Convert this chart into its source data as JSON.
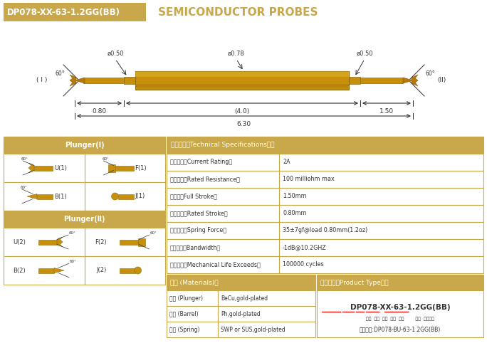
{
  "title_box_text": "DP078-XX-63-1.2GG(BB)",
  "title_subtitle": "SEMICONDUCTOR PROBES",
  "bg_color": "#ffffff",
  "gold_color": "#C8A84B",
  "gold_dark": "#B8962E",
  "gold_light": "#D4B05A",
  "border_color": "#C8A84B",
  "text_color": "#555555",
  "dim_color": "#333333",
  "dims": {
    "d1": "ø0.50",
    "d2": "ø0.78",
    "d3": "ø0.50",
    "l1": "0.80",
    "l2": "(4.0)",
    "l3": "1.50",
    "total": "6.30"
  },
  "specs": [
    [
      "额定电流（Current Rating）",
      "2A"
    ],
    [
      "额定电阔（Rated Resistance）",
      "100 milliohm max"
    ],
    [
      "满行程（Full Stroke）",
      "1.50mm"
    ],
    [
      "额定行程（Rated Stroke）",
      "0.80mm"
    ],
    [
      "额定弹力（Spring Force）",
      "35±7gf@load 0.80mm(1.2oz)"
    ],
    [
      "频率带宽（Bandwidth）",
      "-1dB@10.2GHZ"
    ],
    [
      "测试寿命（Mechanical Life Exceeds）",
      "100000 cycles"
    ]
  ],
  "materials": [
    [
      "针头 (Plunger)",
      "BeCu,gold-plated"
    ],
    [
      "针管 (Barrel)",
      "Ph,gold-plated"
    ],
    [
      "弹簧 (Spring)",
      "SWP or SUS,gold-plated"
    ]
  ],
  "product_type_title": "成品型号（Product Type）：",
  "product_type_code": "DP078-XX-63-1.2GG(BB)",
  "product_type_labels": "系列  规格  头型  总长  弹力        镌金  针头材质",
  "order_example": "订购举例:DP078-BU-63-1.2GG(BB)",
  "plunger1_title": "Plunger(Ⅰ)",
  "plunger2_title": "Plunger(Ⅱ)",
  "materials_title": "材质 (Materials)：",
  "specs_title": "技术要求（Technical Specifications）："
}
